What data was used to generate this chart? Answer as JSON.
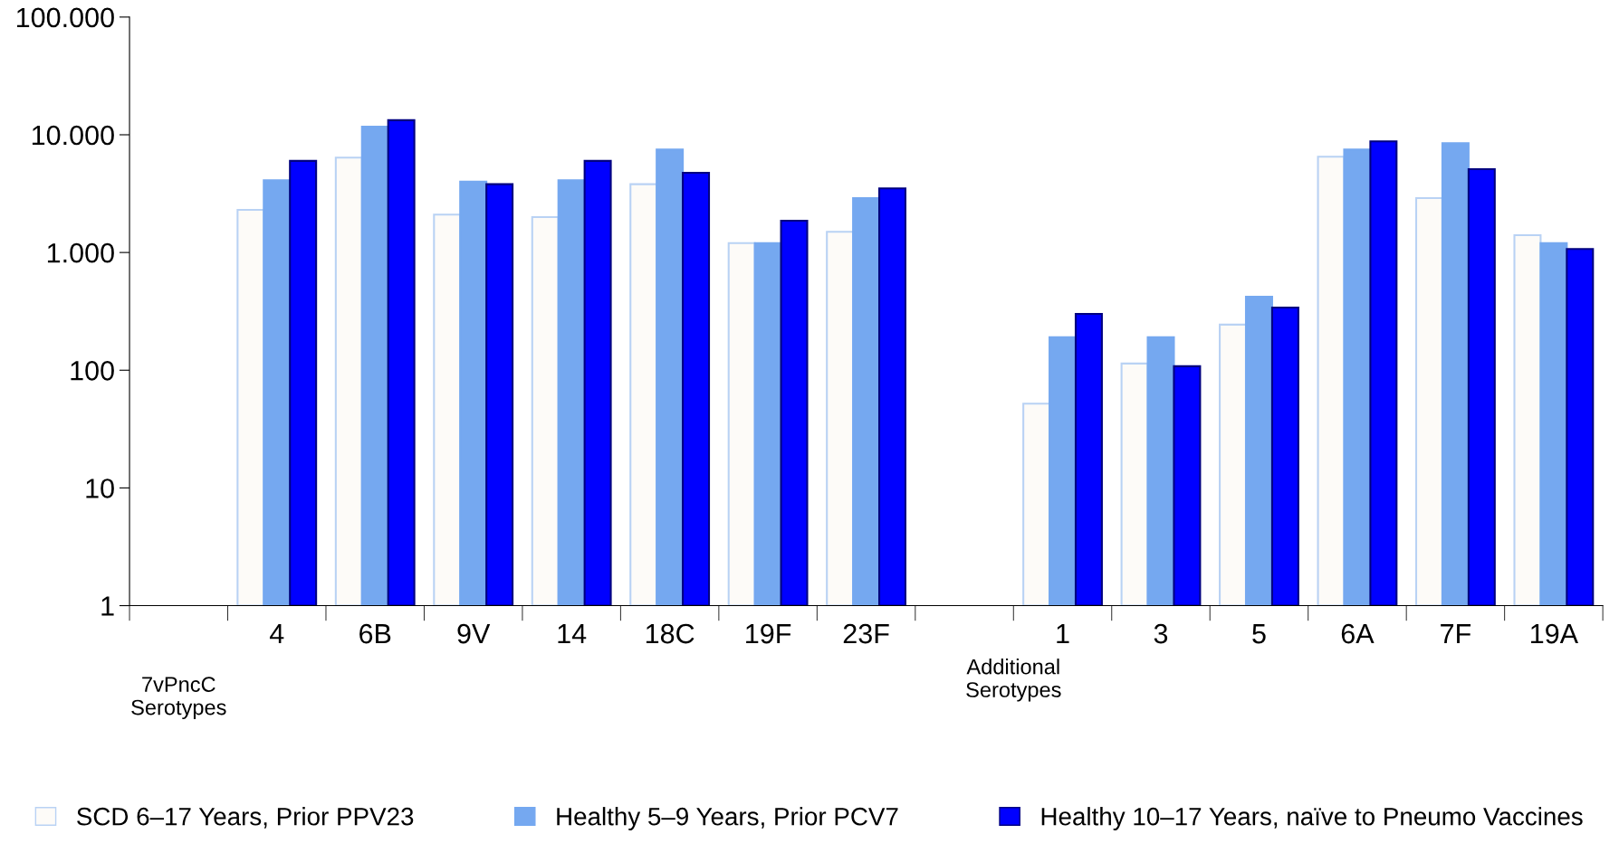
{
  "chart_data": {
    "type": "bar",
    "log": "y",
    "grid": false,
    "legend": "bottom",
    "categories": [
      null,
      "4",
      "6B",
      "9V",
      "14",
      "18C",
      "19F",
      "23F",
      null,
      "1",
      "3",
      "5",
      "6A",
      "7F",
      "19A"
    ],
    "annotations": [
      "7vPncC\nSerotypes",
      "Additional\nSerotypes"
    ],
    "ylim": [
      1,
      100000
    ],
    "yticks": [
      1,
      10,
      100,
      {
        "value": 1000,
        "label": "1.000"
      },
      {
        "value": 10000,
        "label": "10.000"
      },
      {
        "value": 100000,
        "label": "100.000"
      }
    ],
    "series": [
      {
        "name": "SCD 6–17 Years, Prior PPV23",
        "color": "#fdfbf8",
        "values": [
          null,
          2300,
          6400,
          2100,
          2000,
          3800,
          1200,
          1500,
          null,
          51,
          113,
          243,
          6500,
          2900,
          1400
        ]
      },
      {
        "name": "Healthy 5–9 Years, Prior PCV7",
        "color": "#75a8f0",
        "values": [
          null,
          4100,
          11700,
          4000,
          4100,
          7500,
          1200,
          2900,
          null,
          190,
          190,
          420,
          7500,
          8500,
          1200
        ]
      },
      {
        "name": "Healthy 10–17 Years, naïve to Pneumo Vaccines",
        "color": "#0000ff",
        "values": [
          null,
          6000,
          13300,
          3800,
          6000,
          4750,
          1860,
          3500,
          null,
          300,
          107,
          340,
          8800,
          5100,
          1070
        ]
      }
    ]
  }
}
